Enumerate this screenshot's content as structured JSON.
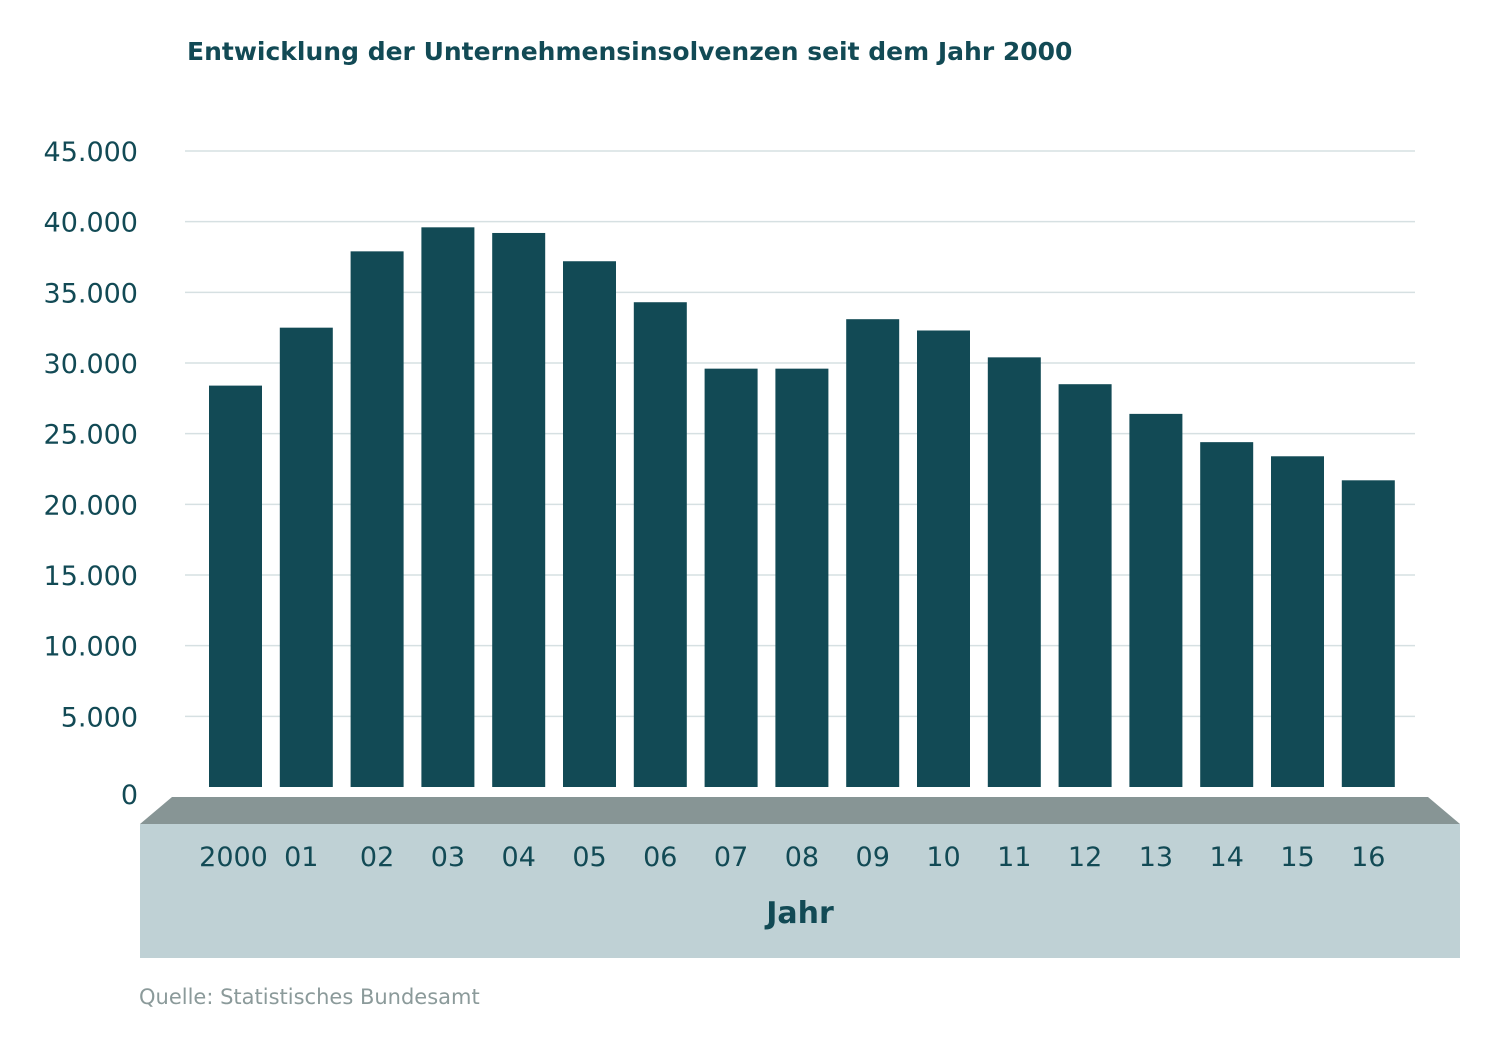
{
  "chart_data": {
    "type": "bar",
    "title": "Entwicklung der Unternehmensinsolvenzen seit dem Jahr 2000",
    "xlabel": "Jahr",
    "ylabel": "",
    "categories": [
      "2000",
      "01",
      "02",
      "03",
      "04",
      "05",
      "06",
      "07",
      "08",
      "09",
      "10",
      "11",
      "12",
      "13",
      "14",
      "15",
      "16"
    ],
    "values": [
      28400,
      32500,
      37900,
      39600,
      39200,
      37200,
      34300,
      29600,
      29600,
      33100,
      32300,
      30400,
      28500,
      26400,
      24400,
      23400,
      21700
    ],
    "ylim": [
      0,
      45000
    ],
    "yticks": [
      0,
      5000,
      10000,
      15000,
      20000,
      25000,
      30000,
      35000,
      40000,
      45000
    ],
    "ytick_labels": [
      "0",
      "5.000",
      "10.000",
      "15.000",
      "20.000",
      "25.000",
      "30.000",
      "35.000",
      "40.000",
      "45.000"
    ],
    "grid": true,
    "source": "Quelle: Statistisches Bundesamt",
    "colors": {
      "bar": "#124a55",
      "grid": "#d6e0e2",
      "base_top": "#879595",
      "base_front": "#bfd1d5",
      "text": "#124a55",
      "source": "#8b9a9a"
    }
  }
}
